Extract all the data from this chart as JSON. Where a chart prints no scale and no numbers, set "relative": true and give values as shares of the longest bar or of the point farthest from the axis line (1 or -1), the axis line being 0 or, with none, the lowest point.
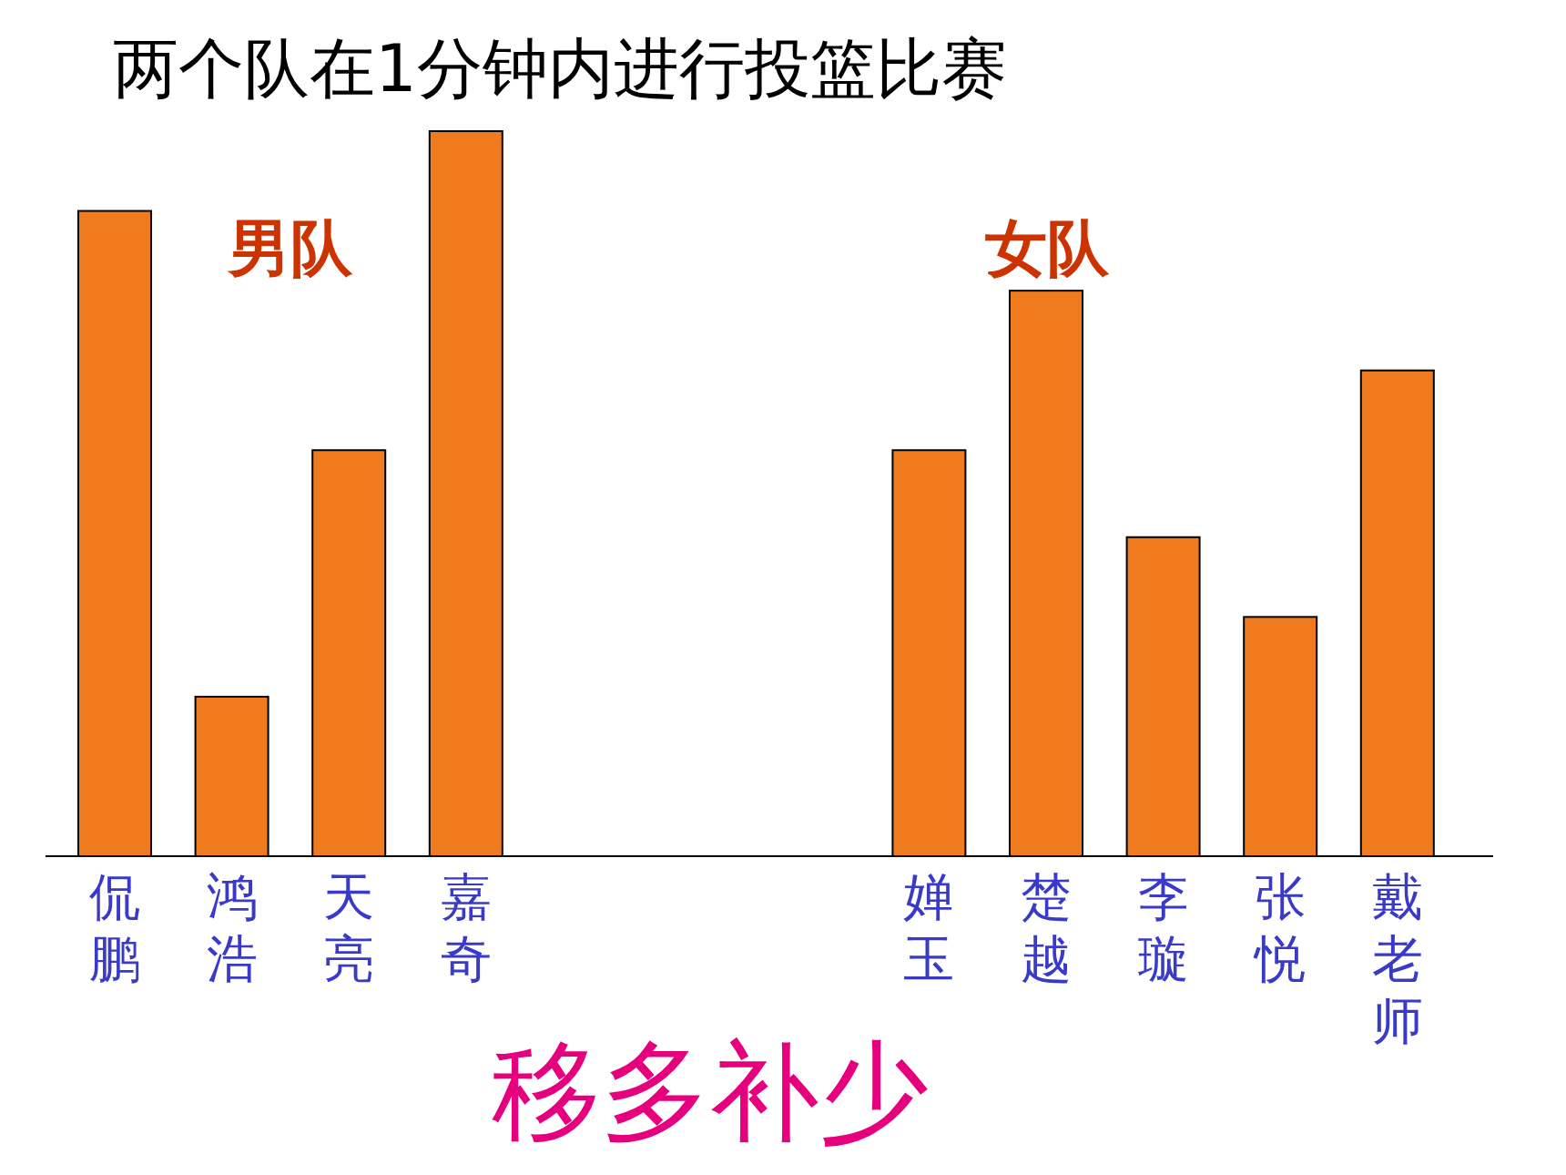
{
  "chart_data": {
    "type": "bar",
    "relative": true,
    "title": "两个队在1分钟内进行投篮比赛",
    "categories": [
      "侃鹏",
      "鸿浩",
      "天亮",
      "嘉奇",
      "婵玉",
      "楚越",
      "李璇",
      "张悦",
      "戴老师"
    ],
    "values": [
      0.89,
      0.22,
      0.56,
      1,
      0.56,
      0.78,
      0.44,
      0.33,
      0.67
    ],
    "color": "#f07b1f",
    "annotations": [
      "男队",
      "女队",
      "移多补少"
    ]
  }
}
